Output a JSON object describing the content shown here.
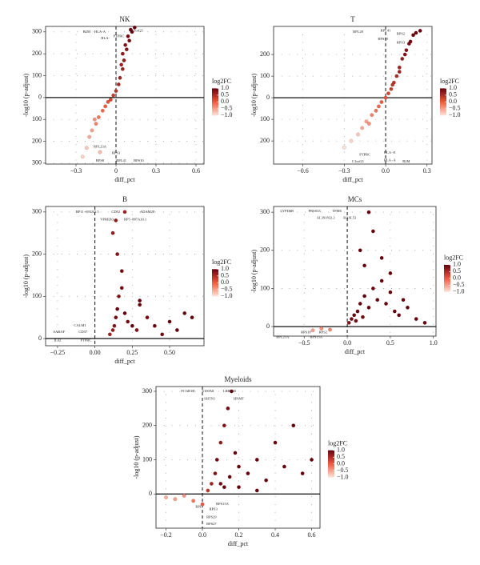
{
  "chart_data": [
    {
      "type": "scatter",
      "title": "NK",
      "x_label": "diff_pct",
      "y_label": "-log10 (p-adjust)",
      "x": [
        -0.25,
        -0.22,
        -0.2,
        -0.18,
        -0.15,
        -0.13,
        -0.1,
        -0.08,
        -0.06,
        -0.04,
        -0.02,
        0.0,
        0.02,
        0.03,
        0.05,
        0.06,
        0.08,
        0.1,
        0.12,
        0.14,
        0.05,
        0.07,
        0.09,
        -0.12,
        -0.16,
        0.04,
        0.11
      ],
      "values": [
        -270,
        -230,
        -180,
        -150,
        -120,
        -90,
        -60,
        -40,
        -20,
        -10,
        10,
        30,
        60,
        90,
        130,
        170,
        220,
        260,
        300,
        320,
        200,
        240,
        280,
        -250,
        -100,
        150,
        310
      ],
      "log2fc": [
        -0.9,
        -0.8,
        -0.6,
        -0.5,
        -0.3,
        -0.2,
        -0.1,
        0,
        0.1,
        0.2,
        0.3,
        0.4,
        0.5,
        0.6,
        0.6,
        0.7,
        0.8,
        0.9,
        1,
        1,
        0.7,
        0.8,
        0.9,
        -0.7,
        -0.4,
        0.6,
        1
      ],
      "xlim": [
        -0.528,
        0.66
      ],
      "ylim": [
        -304,
        325
      ],
      "xticks": [
        {
          "value": -0.3,
          "label": "−0.3"
        },
        0,
        0.3,
        0.6
      ],
      "yticks": [
        300,
        200,
        100,
        0,
        {
          "value": -100,
          "label": "100"
        },
        {
          "value": -200,
          "label": "200"
        },
        {
          "value": -300,
          "label": "300"
        }
      ],
      "annotations": [
        {
          "text": "B2M",
          "x": -0.22,
          "y": 300
        },
        {
          "text": "HLA-A",
          "x": -0.12,
          "y": 300
        },
        {
          "text": "HLA-",
          "x": -0.08,
          "y": 270
        },
        {
          "text": "PTPRC",
          "x": 0.02,
          "y": 280
        },
        {
          "text": "C1orf21",
          "x": 0.16,
          "y": 305
        },
        {
          "text": "RPL23A",
          "x": -0.12,
          "y": -225
        },
        {
          "text": "RPS3",
          "x": 0.0,
          "y": -255
        },
        {
          "text": "RPS8",
          "x": -0.12,
          "y": -290
        },
        {
          "text": "RPL41",
          "x": 0.04,
          "y": -290
        },
        {
          "text": "RPS10",
          "x": 0.17,
          "y": -290
        }
      ],
      "colorbar": {
        "title": "log2FC",
        "cmap": [
          "#fde5d9",
          "#ef5a3c",
          "#67000d"
        ],
        "ticks": [
          {
            "value": 1,
            "label": "1.0"
          },
          {
            "value": 0.5,
            "label": "0.5"
          },
          {
            "value": 0,
            "label": "0.0"
          },
          {
            "value": -0.5,
            "label": "−0.5"
          },
          {
            "value": -1,
            "label": "−1.0"
          }
        ]
      }
    },
    {
      "type": "scatter",
      "title": "T",
      "x_label": "diff_pct",
      "y_label": "-log10 (p-adjust)",
      "x": [
        -0.3,
        -0.25,
        -0.2,
        -0.17,
        -0.14,
        -0.1,
        -0.07,
        -0.05,
        -0.03,
        0,
        0.02,
        0.04,
        0.06,
        0.08,
        0.1,
        0.12,
        0.15,
        0.18,
        0.2,
        0.22,
        0.25,
        -0.12,
        0.05,
        0.1,
        0.14,
        0.17
      ],
      "values": [
        -230,
        -200,
        -170,
        -140,
        -110,
        -80,
        -60,
        -40,
        -20,
        0,
        20,
        40,
        70,
        100,
        140,
        180,
        220,
        260,
        290,
        300,
        310,
        -120,
        60,
        120,
        200,
        250
      ],
      "log2fc": [
        -1,
        -0.9,
        -0.8,
        -0.6,
        -0.5,
        -0.3,
        -0.2,
        -0.1,
        0,
        0.1,
        0.2,
        0.3,
        0.4,
        0.5,
        0.6,
        0.7,
        0.8,
        0.9,
        1,
        1,
        1,
        -0.4,
        0.4,
        0.6,
        0.8,
        0.9
      ],
      "xlim": [
        -0.812,
        0.336
      ],
      "ylim": [
        -307,
        330
      ],
      "xticks": [
        {
          "value": -0.6,
          "label": "−0.6"
        },
        {
          "value": -0.3,
          "label": "−0.3"
        },
        {
          "value": 0,
          "label": "0.0"
        },
        0.3
      ],
      "yticks": [
        200,
        100,
        0,
        {
          "value": -100,
          "label": "100"
        },
        {
          "value": -200,
          "label": "200"
        }
      ],
      "annotations": [
        {
          "text": "RPL28",
          "x": -0.2,
          "y": 305
        },
        {
          "text": "RPL41",
          "x": 0.0,
          "y": 310
        },
        {
          "text": "RPS19",
          "x": -0.02,
          "y": 270
        },
        {
          "text": "RPS2",
          "x": 0.11,
          "y": 295
        },
        {
          "text": "RPS3",
          "x": 0.11,
          "y": 255
        },
        {
          "text": "HLA−E",
          "x": 0.03,
          "y": -255
        },
        {
          "text": "PTPRC",
          "x": -0.15,
          "y": -265
        },
        {
          "text": "C1orf21",
          "x": -0.2,
          "y": -295
        },
        {
          "text": "HLA−A",
          "x": 0.03,
          "y": -290
        },
        {
          "text": "B2M",
          "x": 0.15,
          "y": -295
        }
      ],
      "colorbar": {
        "title": "log2FC",
        "cmap": [
          "#fde5d9",
          "#ef5a3c",
          "#67000d"
        ],
        "ticks": [
          {
            "value": 1,
            "label": "1.0"
          },
          {
            "value": 0.5,
            "label": "0.5"
          },
          {
            "value": 0,
            "label": "0.0"
          },
          {
            "value": -0.5,
            "label": "−0.5"
          },
          {
            "value": -1,
            "label": "−1.0"
          }
        ]
      }
    },
    {
      "type": "scatter",
      "title": "B",
      "x_label": "diff_pct",
      "y_label": "-log10 (p-adjust)",
      "x": [
        0.1,
        0.12,
        0.13,
        0.14,
        0.15,
        0.16,
        0.18,
        0.2,
        0.22,
        0.25,
        0.28,
        0.3,
        0.35,
        0.4,
        0.45,
        0.5,
        0.55,
        0.6,
        0.65,
        0.12,
        0.15,
        0.18,
        0.2,
        0.14,
        0.3
      ],
      "values": [
        10,
        20,
        30,
        50,
        70,
        100,
        120,
        60,
        40,
        30,
        20,
        80,
        50,
        30,
        10,
        40,
        20,
        60,
        50,
        250,
        200,
        160,
        300,
        280,
        90
      ],
      "log2fc": [
        0.6,
        0.7,
        0.8,
        0.9,
        1,
        0.8,
        0.9,
        1,
        0.9,
        1,
        0.8,
        1,
        0.9,
        1,
        0.9,
        1,
        1,
        1,
        1,
        0.7,
        0.8,
        0.9,
        0.6,
        0.7,
        1
      ],
      "xlim": [
        -0.33,
        0.73
      ],
      "ylim": [
        -17,
        313
      ],
      "xticks": [
        {
          "value": -0.25,
          "label": "−0.25"
        },
        {
          "value": 0,
          "label": "0.00"
        },
        0.25,
        {
          "value": 0.5,
          "label": "0.50"
        }
      ],
      "yticks": [
        0,
        100,
        200,
        300
      ],
      "annotations": [
        {
          "text": "RP11−693J15.5",
          "x": -0.05,
          "y": 300
        },
        {
          "text": "CD52",
          "x": 0.14,
          "y": 300
        },
        {
          "text": "ADAM28",
          "x": 0.35,
          "y": 300
        },
        {
          "text": "VPREB3",
          "x": 0.08,
          "y": 282
        },
        {
          "text": "RP5−887A10.1",
          "x": 0.27,
          "y": 282
        },
        {
          "text": "CALM1",
          "x": -0.1,
          "y": 30
        },
        {
          "text": "SARAF",
          "x": -0.24,
          "y": 15
        },
        {
          "text": "CD37",
          "x": -0.08,
          "y": 15
        },
        {
          "text": "IL32",
          "x": -0.25,
          "y": -5
        },
        {
          "text": "PTPRC",
          "x": -0.06,
          "y": -5
        }
      ],
      "colorbar": {
        "title": "log2FC",
        "cmap": [
          "#fde5d9",
          "#ef5a3c",
          "#67000d"
        ],
        "ticks": [
          {
            "value": 1,
            "label": "1.0"
          },
          {
            "value": 0.5,
            "label": "0.5"
          },
          {
            "value": 0,
            "label": "0.0"
          },
          {
            "value": -0.5,
            "label": "−0.5"
          },
          {
            "value": -1,
            "label": "−1.0"
          }
        ]
      }
    },
    {
      "type": "scatter",
      "title": "MCs",
      "x_label": "diff_pct",
      "y_label": "-log10 (p-adjust)",
      "x": [
        0.02,
        0.05,
        0.08,
        0.1,
        0.12,
        0.15,
        0.18,
        0.2,
        0.25,
        0.3,
        0.35,
        0.4,
        0.45,
        0.5,
        0.55,
        0.6,
        0.65,
        0.7,
        0.8,
        0.9,
        0.15,
        0.2,
        0.3,
        0.4,
        0.25,
        0.5,
        -0.4,
        -0.3,
        -0.2
      ],
      "values": [
        10,
        20,
        30,
        15,
        40,
        60,
        25,
        80,
        50,
        100,
        70,
        120,
        60,
        90,
        40,
        30,
        70,
        50,
        20,
        10,
        200,
        160,
        250,
        180,
        300,
        140,
        -10,
        -5,
        -8
      ],
      "log2fc": [
        0.8,
        0.9,
        1,
        0.9,
        1,
        1,
        0.9,
        1,
        1,
        1,
        1,
        1,
        1,
        1,
        1,
        1,
        1,
        1,
        1,
        1,
        1,
        1,
        1,
        1,
        1,
        1,
        -0.5,
        -0.4,
        -0.3
      ],
      "xlim": [
        -0.855,
        1.03
      ],
      "ylim": [
        -25,
        315
      ],
      "xticks": [
        {
          "value": -0.5,
          "label": "−0.5"
        },
        {
          "value": 0,
          "label": "0.0"
        },
        0.5,
        {
          "value": 1,
          "label": "1.0"
        }
      ],
      "yticks": [
        0,
        100,
        200,
        300
      ],
      "annotations": [
        {
          "text": "LYPD6B",
          "x": -0.7,
          "y": 302
        },
        {
          "text": "PRSS33",
          "x": -0.38,
          "y": 302
        },
        {
          "text": "TPM6",
          "x": -0.12,
          "y": 302
        },
        {
          "text": "AL391832.2",
          "x": -0.25,
          "y": 285
        },
        {
          "text": "RASL53",
          "x": 0.03,
          "y": 285
        },
        {
          "text": "RPS18",
          "x": -0.48,
          "y": -15
        },
        {
          "text": "RPS2",
          "x": -0.28,
          "y": -15
        },
        {
          "text": "RPL21A",
          "x": -0.75,
          "y": -28
        },
        {
          "text": "RPS15A",
          "x": -0.36,
          "y": -28
        }
      ],
      "colorbar": {
        "title": "log2FC",
        "cmap": [
          "#fde5d9",
          "#ef5a3c",
          "#67000d"
        ],
        "ticks": [
          {
            "value": 1,
            "label": "1.0"
          },
          {
            "value": 0.5,
            "label": "0.5"
          },
          {
            "value": 0,
            "label": "0.0"
          },
          {
            "value": -0.5,
            "label": "−0.5"
          },
          {
            "value": -1,
            "label": "−1.0"
          }
        ]
      }
    },
    {
      "type": "scatter",
      "title": "Myeloids",
      "x_label": "diff_pct",
      "y_label": "-log10 (p-adjust)",
      "x": [
        -0.2,
        -0.15,
        -0.1,
        -0.05,
        0.0,
        0.03,
        0.05,
        0.07,
        0.08,
        0.1,
        0.12,
        0.14,
        0.16,
        0.18,
        0.2,
        0.25,
        0.3,
        0.35,
        0.4,
        0.45,
        0.5,
        0.55,
        0.6,
        0.1,
        0.12,
        0.15,
        0.2,
        0.3
      ],
      "values": [
        -10,
        -15,
        -5,
        -20,
        -30,
        10,
        30,
        60,
        100,
        150,
        200,
        250,
        300,
        120,
        80,
        60,
        100,
        40,
        150,
        80,
        200,
        60,
        100,
        30,
        20,
        50,
        20,
        10
      ],
      "log2fc": [
        -0.6,
        -0.5,
        -0.4,
        -0.2,
        0,
        0.4,
        0.6,
        0.8,
        0.9,
        0.7,
        0.8,
        0.9,
        1,
        1,
        1,
        1,
        1,
        1,
        1,
        1,
        1,
        1,
        1,
        0.9,
        1,
        1,
        1,
        1
      ],
      "xlim": [
        -0.255,
        0.646
      ],
      "ylim": [
        -100,
        314
      ],
      "xticks": [
        {
          "value": -0.2,
          "label": "−0.2"
        },
        {
          "value": 0,
          "label": "0.0"
        },
        0.2,
        0.4,
        0.6
      ],
      "yticks": [
        0,
        100,
        200,
        300
      ],
      "annotations": [
        {
          "text": "FCGR1B",
          "x": -0.08,
          "y": 300
        },
        {
          "text": "S100A8",
          "x": 0.03,
          "y": 300
        },
        {
          "text": "LRRC25",
          "x": 0.15,
          "y": 300
        },
        {
          "text": "SHTN1",
          "x": 0.04,
          "y": 278
        },
        {
          "text": "HNMT",
          "x": 0.2,
          "y": 278
        },
        {
          "text": "RPS15A",
          "x": 0.11,
          "y": -30
        },
        {
          "text": "RPS3",
          "x": 0.06,
          "y": -45
        },
        {
          "text": "RPL",
          "x": -0.02,
          "y": -38
        },
        {
          "text": "RPS29",
          "x": 0.05,
          "y": -68
        },
        {
          "text": "RPS27",
          "x": 0.05,
          "y": -88
        }
      ],
      "colorbar": {
        "title": "log2FC",
        "cmap": [
          "#fde5d9",
          "#ef5a3c",
          "#67000d"
        ],
        "ticks": [
          {
            "value": 1,
            "label": "1.0"
          },
          {
            "value": 0.5,
            "label": "0.5"
          },
          {
            "value": 0,
            "label": "0.0"
          },
          {
            "value": -0.5,
            "label": "−0.5"
          },
          {
            "value": -1,
            "label": "−1.0"
          }
        ]
      }
    }
  ]
}
